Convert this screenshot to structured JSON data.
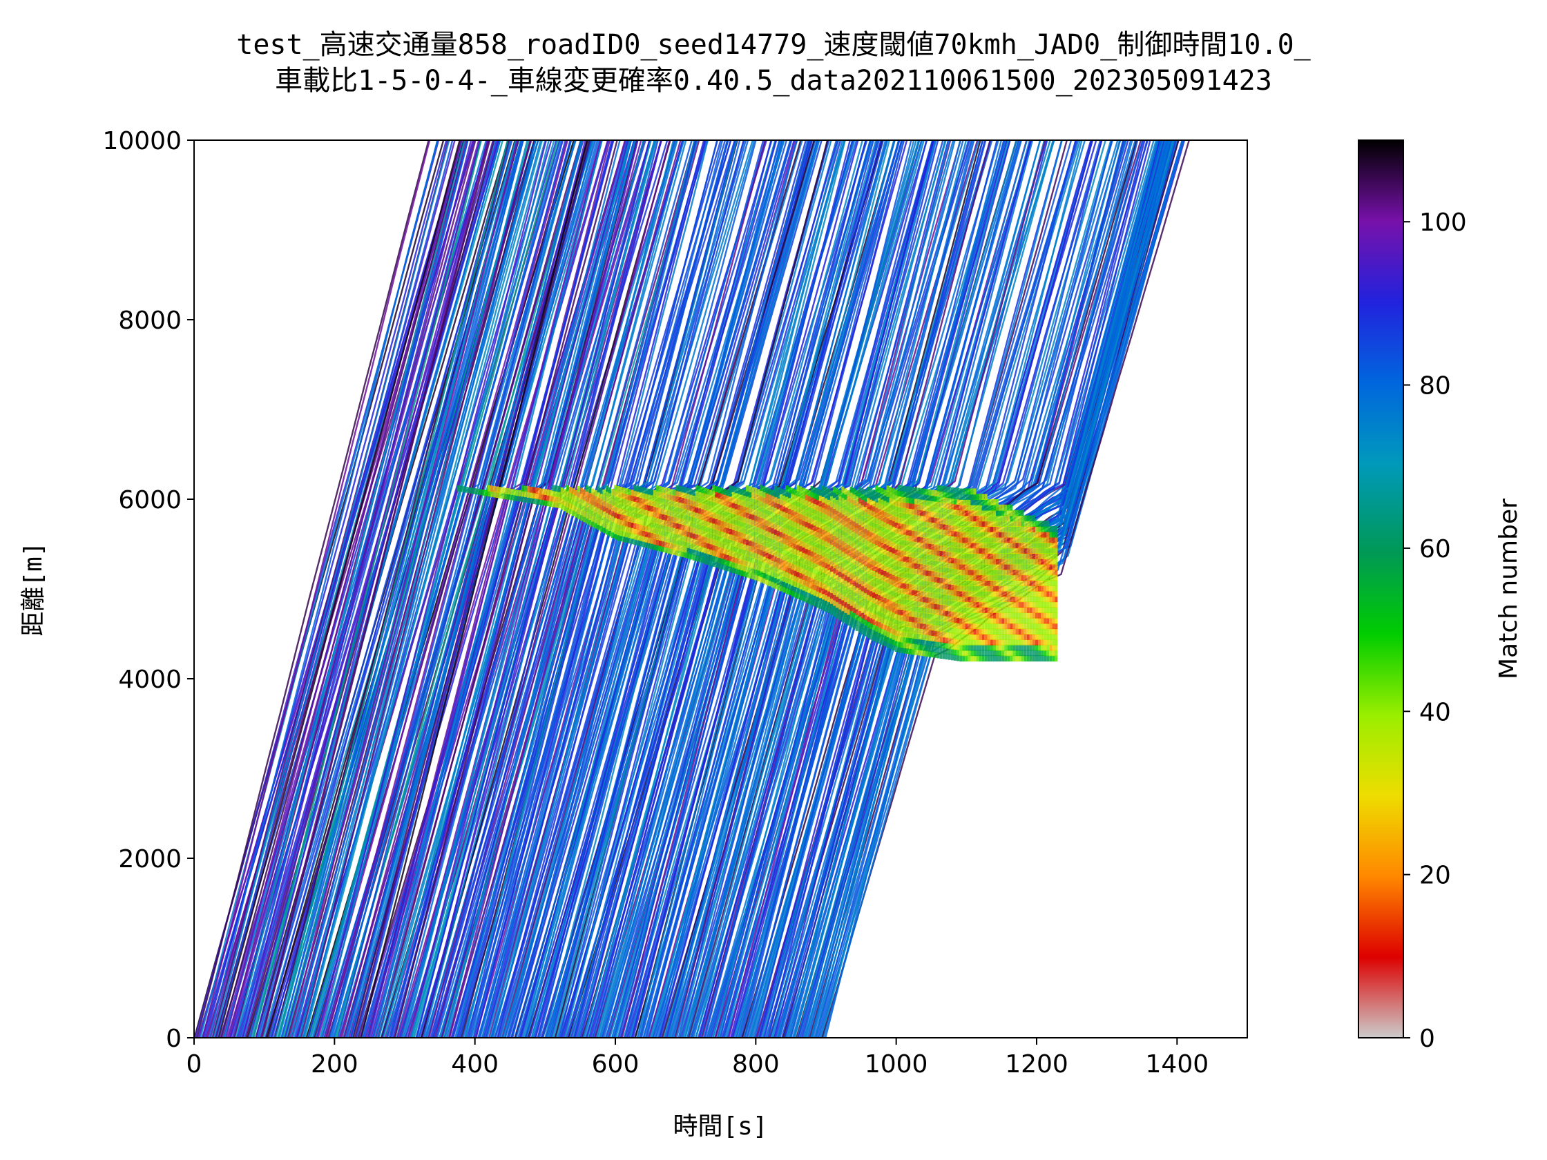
{
  "chart_data": {
    "type": "line",
    "title_line1": "test_高速交通量858_roadID0_seed14779_速度閾値70kmh_JAD0_制御時間10.0_",
    "title_line2": "車載比1-5-0-4-_車線変更確率0.40.5_data202110061500_202305091423",
    "xlabel": "時間[s]",
    "ylabel": "距離[m]",
    "xlim": [
      0,
      1500
    ],
    "ylim": [
      0,
      10000
    ],
    "x_ticks": [
      0,
      200,
      400,
      600,
      800,
      1000,
      1200,
      1400
    ],
    "y_ticks": [
      0,
      2000,
      4000,
      6000,
      8000,
      10000
    ],
    "colorbar": {
      "label": "Match number",
      "range": [
        0,
        110
      ],
      "ticks": [
        0,
        20,
        40,
        60,
        80,
        100
      ],
      "colormap": "nipy_spectral_r"
    },
    "trajectories": {
      "description_free_flow_speed_mps": 28,
      "departure_time_range": [
        0,
        900
      ],
      "approx_count": 858
    },
    "congestion": {
      "head_position_m": 6100,
      "onset_time_s": 370,
      "tail_positions_m": [
        [
          520,
          5900
        ],
        [
          600,
          5550
        ],
        [
          700,
          5350
        ],
        [
          800,
          5100
        ],
        [
          900,
          4750
        ],
        [
          960,
          4450
        ],
        [
          1000,
          4300
        ],
        [
          1090,
          4200
        ]
      ],
      "dissolve_time_s": 1230,
      "dissolve_position_m": 5000
    }
  }
}
